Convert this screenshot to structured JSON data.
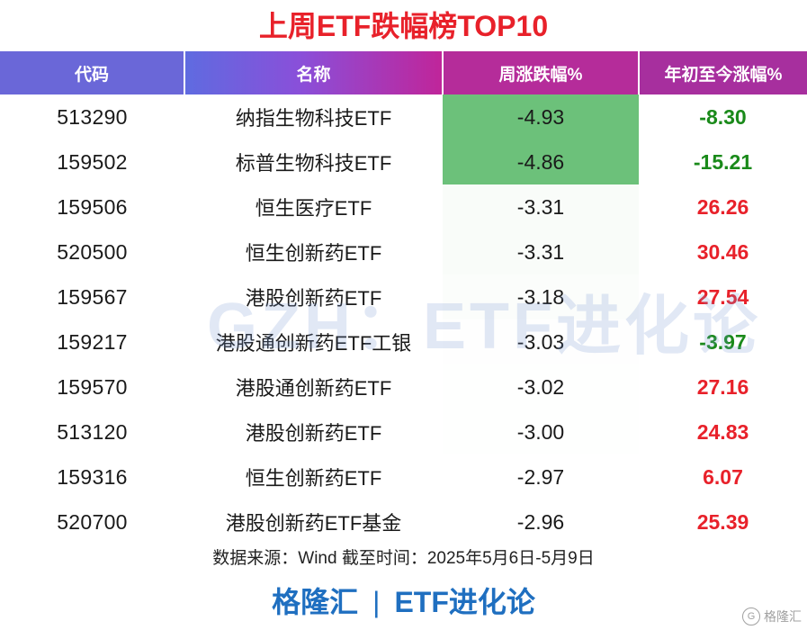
{
  "title": "上周ETF跌幅榜TOP10",
  "headers": [
    "代码",
    "名称",
    "周涨跌幅%",
    "年初至今涨幅%"
  ],
  "rows": [
    {
      "code": "513290",
      "name": "纳指生物科技ETF",
      "week": "-4.93",
      "ytd": "-8.30"
    },
    {
      "code": "159502",
      "name": "标普生物科技ETF",
      "week": "-4.86",
      "ytd": "-15.21"
    },
    {
      "code": "159506",
      "name": "恒生医疗ETF",
      "week": "-3.31",
      "ytd": "26.26"
    },
    {
      "code": "520500",
      "name": "恒生创新药ETF",
      "week": "-3.31",
      "ytd": "30.46"
    },
    {
      "code": "159567",
      "name": "港股创新药ETF",
      "week": "-3.18",
      "ytd": "27.54"
    },
    {
      "code": "159217",
      "name": "港股通创新药ETF工银",
      "week": "-3.03",
      "ytd": "-3.97"
    },
    {
      "code": "159570",
      "name": "港股通创新药ETF",
      "week": "-3.02",
      "ytd": "27.16"
    },
    {
      "code": "513120",
      "name": "港股创新药ETF",
      "week": "-3.00",
      "ytd": "24.83"
    },
    {
      "code": "159316",
      "name": "恒生创新药ETF",
      "week": "-2.97",
      "ytd": "6.07"
    },
    {
      "code": "520700",
      "name": "港股创新药ETF基金",
      "week": "-2.96",
      "ytd": "25.39"
    }
  ],
  "colors": {
    "title": "#e8212a",
    "positive": "#e8212a",
    "negative": "#1a8a1a",
    "heat_strong": "#6cc17a",
    "heat_weak": "#e2f2e4",
    "footer": "#1f6fc0"
  },
  "watermark": "GZH：ETF进化论",
  "source": "数据来源：Wind 截至时间：2025年5月6日-5月9日",
  "footer": {
    "brand": "格隆汇",
    "separator": "|",
    "channel": "ETF进化论"
  },
  "corner_logo": {
    "icon": "gelonghui-logo-icon",
    "text": "格隆汇"
  }
}
